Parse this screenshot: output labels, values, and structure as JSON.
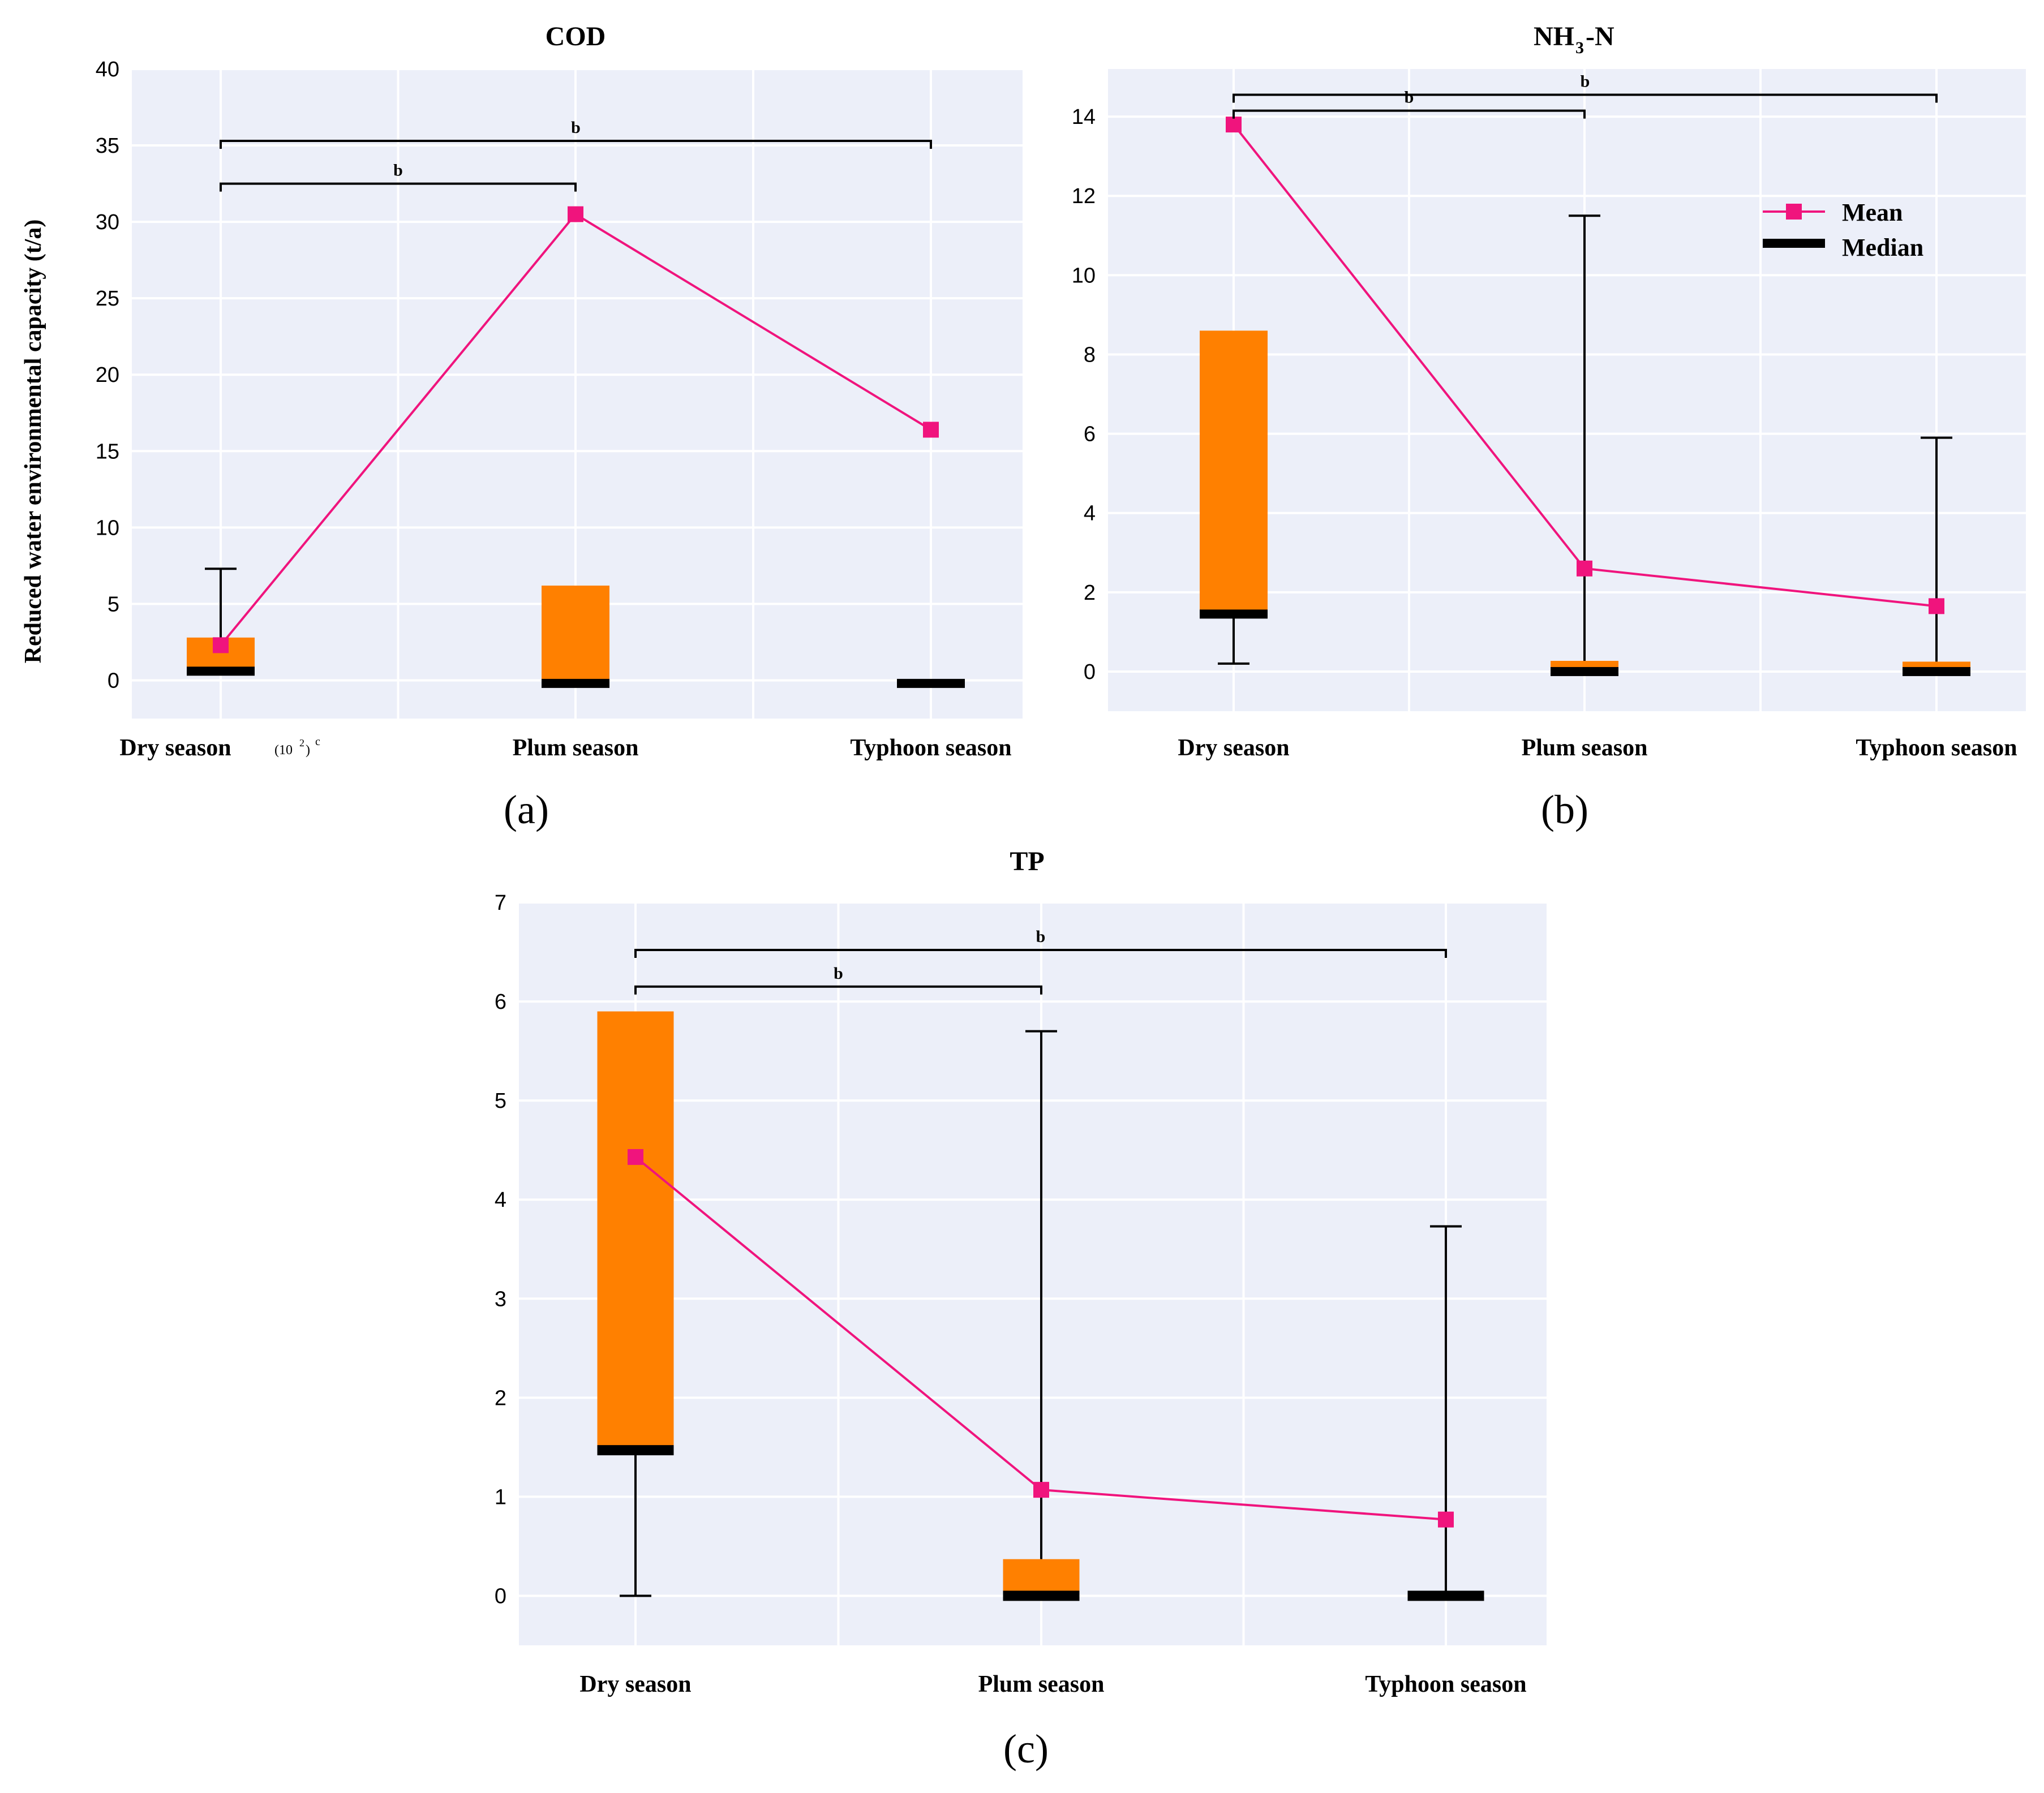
{
  "colors": {
    "plot_bg": "#ECEFF9",
    "grid": "#FFFFFF",
    "box": "#FF8000",
    "median": "#000000",
    "mean": "#F0147D",
    "whisker": "#000000"
  },
  "legend": {
    "mean_label": "Mean",
    "median_label": "Median"
  },
  "y_axis_label": "Reduced water environmental capacity (t/a)",
  "chart_data": [
    {
      "id": "a",
      "type": "box",
      "title": "COD",
      "panel_label": "(a)",
      "categories": [
        "Dry season",
        "Plum season",
        "Typhoon season"
      ],
      "category_suffix": {
        "index": 0,
        "text": "(10",
        "sup": "2",
        "close": ")",
        "note": "c"
      },
      "ylim": [
        -2.5,
        40
      ],
      "yticks": [
        0,
        5,
        10,
        15,
        20,
        25,
        30,
        35,
        40
      ],
      "boxes": [
        {
          "q1": 0.6,
          "q3": 2.8,
          "median": 0.6,
          "whisker_low": null,
          "whisker_high": 7.3
        },
        {
          "q1": -0.2,
          "q3": 6.2,
          "median": -0.2,
          "whisker_low": null,
          "whisker_high": null
        },
        {
          "q1": -0.2,
          "q3": -0.2,
          "median": -0.2,
          "whisker_low": null,
          "whisker_high": null
        }
      ],
      "mean": [
        2.3,
        30.5,
        16.4
      ],
      "significance": [
        {
          "from": 0,
          "to": 1,
          "y": 32.5,
          "label": "b"
        },
        {
          "from": 0,
          "to": 2,
          "y": 35.3,
          "label": "b"
        }
      ]
    },
    {
      "id": "b",
      "type": "box",
      "title_parts": {
        "pre": "NH",
        "sub": "3",
        "post": "-N"
      },
      "panel_label": "(b)",
      "categories": [
        "Dry season",
        "Plum season",
        "Typhoon season"
      ],
      "ylim": [
        -1,
        15.2
      ],
      "yticks": [
        0,
        2,
        4,
        6,
        8,
        10,
        12,
        14
      ],
      "boxes": [
        {
          "q1": 1.45,
          "q3": 8.6,
          "median": 1.45,
          "whisker_low": 0.2,
          "whisker_high": null
        },
        {
          "q1": 0.0,
          "q3": 0.27,
          "median": 0.0,
          "whisker_low": null,
          "whisker_high": 11.5
        },
        {
          "q1": 0.0,
          "q3": 0.25,
          "median": 0.0,
          "whisker_low": null,
          "whisker_high": 5.9
        }
      ],
      "mean": [
        13.8,
        2.6,
        1.65
      ],
      "significance": [
        {
          "from": 0,
          "to": 1,
          "y": 14.15,
          "label": "b"
        },
        {
          "from": 0,
          "to": 2,
          "y": 14.55,
          "label": "b"
        }
      ]
    },
    {
      "id": "c",
      "type": "box",
      "title": "TP",
      "panel_label": "(c)",
      "categories": [
        "Dry season",
        "Plum season",
        "Typhoon season"
      ],
      "ylim": [
        -0.5,
        7
      ],
      "yticks": [
        0,
        1,
        2,
        3,
        4,
        5,
        6,
        7
      ],
      "boxes": [
        {
          "q1": 1.47,
          "q3": 5.9,
          "median": 1.47,
          "whisker_low": 0.0,
          "whisker_high": null
        },
        {
          "q1": 0.0,
          "q3": 0.37,
          "median": 0.0,
          "whisker_low": null,
          "whisker_high": 5.7
        },
        {
          "q1": 0.0,
          "q3": 0.0,
          "median": 0.0,
          "whisker_low": null,
          "whisker_high": 3.73
        }
      ],
      "mean": [
        4.43,
        1.07,
        0.77
      ],
      "significance": [
        {
          "from": 0,
          "to": 1,
          "y": 6.15,
          "label": "b"
        },
        {
          "from": 0,
          "to": 2,
          "y": 6.52,
          "label": "b"
        }
      ]
    }
  ]
}
